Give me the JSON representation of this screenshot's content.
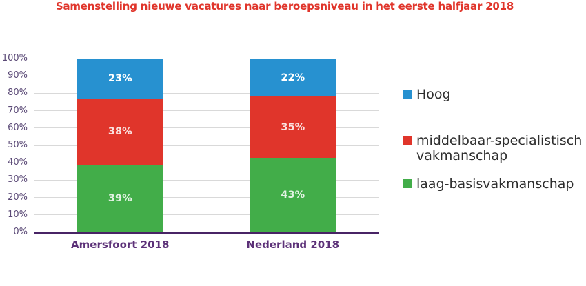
{
  "title": "Samenstelling nieuwe vacatures naar beroepsniveau in het eerste halfjaar 2018",
  "chart_data": {
    "type": "bar",
    "subtype": "stacked-100-percent",
    "categories": [
      "Amersfoort 2018",
      "Nederland 2018"
    ],
    "series": [
      {
        "key": "laag-basisvakmanschap",
        "name": "laag-basisvakmanschap",
        "color": "#42AD49",
        "values": [
          39,
          43
        ]
      },
      {
        "key": "middelbaar-specialistisch-vakmanschap",
        "name": "middelbaar-specialistisch vakmanschap",
        "color": "#E0352B",
        "values": [
          38,
          35
        ]
      },
      {
        "key": "hoog",
        "name": "Hoog",
        "color": "#2791D0",
        "values": [
          23,
          22
        ]
      }
    ],
    "data_labels": [
      [
        "39%",
        "43%"
      ],
      [
        "38%",
        "35%"
      ],
      [
        "23%",
        "22%"
      ]
    ],
    "ylim": [
      0,
      100
    ],
    "yticks": [
      "0%",
      "10%",
      "20%",
      "30%",
      "40%",
      "50%",
      "60%",
      "70%",
      "80%",
      "90%",
      "100%"
    ],
    "grid": true,
    "legend_position": "right",
    "legend_order": [
      "Hoog",
      "middelbaar-specialistisch vakmanschap",
      "laag-basisvakmanschap"
    ]
  },
  "colors": {
    "title": "#E0352B",
    "axis_tick_labels": "#5B4A77",
    "category_labels": "#5C3178",
    "baseline": "#482465",
    "gridline": "#D9D9D9",
    "data_label": "#FFFFFF",
    "legend_text": "#2E2E2E",
    "background": "#FFFFFF"
  }
}
